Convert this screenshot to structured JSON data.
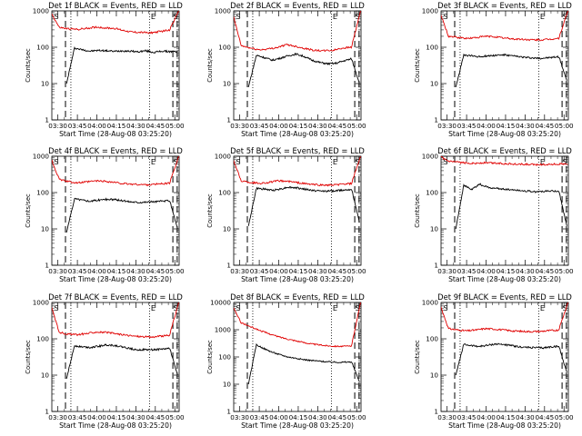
{
  "colors": {
    "events": "#000000",
    "lld": "#e00000",
    "axes": "#000000",
    "background": "#ffffff"
  },
  "chart_data": [
    {
      "type": "line",
      "title": "Det 1f BLACK = Events, RED = LLD",
      "xlabel": "Start Time (28-Aug-08 03:25:20)",
      "ylabel": "Counts/sec",
      "scale": "log",
      "ylim": [
        1,
        1000
      ],
      "yticks": [
        "1",
        "10",
        "100",
        "1000"
      ],
      "xticks": [
        "03:30",
        "03:45",
        "04:00",
        "04:15",
        "04:30",
        "04:45",
        "05:00"
      ],
      "xlim": [
        "03:25:20",
        "05:03:20"
      ],
      "markers": [
        "S",
        "E",
        "S"
      ],
      "dashed_lines": [
        "03:35:50",
        "04:58:30",
        "05:01:50"
      ],
      "dotted_lines": [
        "03:40:00",
        "04:40:30"
      ],
      "series": [
        {
          "name": "Events",
          "color": "#000000",
          "start": "03:36:40",
          "end": "05:02:10",
          "values": [
            10,
            95,
            85,
            78,
            82,
            80,
            77,
            80,
            78,
            75,
            80,
            72,
            78,
            76,
            75
          ]
        },
        {
          "name": "LLD",
          "color": "#e00000",
          "start": "03:24:00",
          "end": "05:03:00",
          "values": [
            1000,
            350,
            320,
            310,
            330,
            360,
            340,
            330,
            290,
            260,
            255,
            250,
            270,
            300,
            1000
          ]
        }
      ]
    },
    {
      "type": "line",
      "title": "Det 2f BLACK = Events, RED = LLD",
      "xlabel": "Start Time (28-Aug-08 03:25:20)",
      "ylabel": "Counts/sec",
      "scale": "log",
      "ylim": [
        1,
        1000
      ],
      "yticks": [
        "1",
        "10",
        "100",
        "1000"
      ],
      "xticks": [
        "03:30",
        "03:45",
        "04:00",
        "04:15",
        "04:30",
        "04:45",
        "05:00"
      ],
      "xlim": [
        "03:25:20",
        "05:03:20"
      ],
      "markers": [
        "S",
        "E",
        "S"
      ],
      "dashed_lines": [
        "03:35:50",
        "04:58:30",
        "05:01:50"
      ],
      "dotted_lines": [
        "03:40:00",
        "04:40:30"
      ],
      "series": [
        {
          "name": "Events",
          "color": "#000000",
          "start": "03:36:40",
          "end": "05:02:10",
          "values": [
            8,
            60,
            52,
            44,
            50,
            58,
            65,
            56,
            44,
            38,
            35,
            36,
            42,
            48,
            10
          ]
        },
        {
          "name": "LLD",
          "color": "#e00000",
          "start": "03:24:00",
          "end": "05:03:00",
          "values": [
            1000,
            110,
            95,
            85,
            90,
            100,
            118,
            105,
            92,
            82,
            80,
            82,
            95,
            100,
            1000
          ]
        }
      ]
    },
    {
      "type": "line",
      "title": "Det 3f BLACK = Events, RED = LLD",
      "xlabel": "Start Time (28-Aug-08 03:25:20)",
      "ylabel": "Counts/sec",
      "scale": "log",
      "ylim": [
        1,
        1000
      ],
      "yticks": [
        "1",
        "10",
        "100",
        "1000"
      ],
      "xticks": [
        "03:30",
        "03:45",
        "04:00",
        "04:15",
        "04:30",
        "04:45",
        "05:00"
      ],
      "xlim": [
        "03:25:20",
        "05:03:20"
      ],
      "markers": [
        "S",
        "E",
        "S"
      ],
      "dashed_lines": [
        "03:35:50",
        "04:58:30",
        "05:01:50"
      ],
      "dotted_lines": [
        "03:40:00",
        "04:40:30"
      ],
      "series": [
        {
          "name": "Events",
          "color": "#000000",
          "start": "03:36:40",
          "end": "05:02:10",
          "values": [
            8,
            60,
            58,
            55,
            58,
            60,
            62,
            58,
            55,
            52,
            50,
            50,
            52,
            55,
            12
          ]
        },
        {
          "name": "LLD",
          "color": "#e00000",
          "start": "03:24:00",
          "end": "05:03:00",
          "values": [
            1000,
            200,
            185,
            175,
            185,
            200,
            195,
            180,
            170,
            165,
            160,
            158,
            165,
            175,
            1000
          ]
        }
      ]
    },
    {
      "type": "line",
      "title": "Det 4f BLACK = Events, RED = LLD",
      "xlabel": "Start Time (28-Aug-08 03:25:20)",
      "ylabel": "Counts/sec",
      "scale": "log",
      "ylim": [
        1,
        1000
      ],
      "yticks": [
        "1",
        "10",
        "100",
        "1000"
      ],
      "xticks": [
        "03:30",
        "03:45",
        "04:00",
        "04:15",
        "04:30",
        "04:45",
        "05:00"
      ],
      "xlim": [
        "03:25:20",
        "05:03:20"
      ],
      "markers": [
        "S",
        "E",
        "S"
      ],
      "dashed_lines": [
        "03:35:50",
        "04:58:30",
        "05:01:50"
      ],
      "dotted_lines": [
        "03:40:00",
        "04:40:30"
      ],
      "series": [
        {
          "name": "Events",
          "color": "#000000",
          "start": "03:36:40",
          "end": "05:02:10",
          "values": [
            8,
            68,
            62,
            58,
            62,
            65,
            64,
            60,
            56,
            54,
            55,
            56,
            58,
            60,
            10
          ]
        },
        {
          "name": "LLD",
          "color": "#e00000",
          "start": "03:24:00",
          "end": "05:03:00",
          "values": [
            1000,
            230,
            200,
            185,
            195,
            210,
            205,
            190,
            175,
            170,
            165,
            165,
            175,
            180,
            1000
          ]
        }
      ]
    },
    {
      "type": "line",
      "title": "Det 5f BLACK = Events, RED = LLD",
      "xlabel": "Start Time (28-Aug-08 03:25:20)",
      "ylabel": "Counts/sec",
      "scale": "log",
      "ylim": [
        1,
        1000
      ],
      "yticks": [
        "1",
        "10",
        "100",
        "1000"
      ],
      "xticks": [
        "03:30",
        "03:45",
        "04:00",
        "04:15",
        "04:30",
        "04:45",
        "05:00"
      ],
      "xlim": [
        "03:25:20",
        "05:03:20"
      ],
      "markers": [
        "S",
        "E",
        "S"
      ],
      "dashed_lines": [
        "03:35:50",
        "04:58:30",
        "05:01:50"
      ],
      "dotted_lines": [
        "03:40:00",
        "04:40:30"
      ],
      "series": [
        {
          "name": "Events",
          "color": "#000000",
          "start": "03:36:40",
          "end": "05:02:10",
          "values": [
            12,
            130,
            125,
            115,
            125,
            140,
            135,
            125,
            115,
            110,
            110,
            112,
            118,
            125,
            15
          ]
        },
        {
          "name": "LLD",
          "color": "#e00000",
          "start": "03:24:00",
          "end": "05:03:00",
          "values": [
            1000,
            210,
            190,
            180,
            190,
            210,
            205,
            190,
            175,
            165,
            160,
            160,
            170,
            175,
            1000
          ]
        }
      ]
    },
    {
      "type": "line",
      "title": "Det 6f BLACK = Events, RED = LLD",
      "xlabel": "Start Time (28-Aug-08 03:25:20)",
      "ylabel": "Counts/sec",
      "scale": "log",
      "ylim": [
        1,
        1000
      ],
      "yticks": [
        "1",
        "10",
        "100",
        "1000"
      ],
      "xticks": [
        "03:30",
        "03:45",
        "04:00",
        "04:15",
        "04:30",
        "04:45",
        "05:00"
      ],
      "xlim": [
        "03:25:20",
        "05:03:20"
      ],
      "markers": [
        "S",
        "E",
        "S"
      ],
      "dashed_lines": [
        "03:35:50",
        "04:58:30",
        "05:01:50"
      ],
      "dotted_lines": [
        "03:40:00",
        "04:40:30"
      ],
      "series": [
        {
          "name": "Events",
          "color": "#000000",
          "start": "03:36:40",
          "end": "05:02:10",
          "values": [
            10,
            160,
            120,
            170,
            140,
            130,
            125,
            120,
            115,
            110,
            105,
            108,
            110,
            110,
            12
          ]
        },
        {
          "name": "LLD",
          "color": "#e00000",
          "start": "03:24:00",
          "end": "05:03:00",
          "values": [
            1000,
            720,
            680,
            650,
            640,
            660,
            650,
            630,
            610,
            600,
            590,
            590,
            600,
            610,
            600
          ]
        }
      ]
    },
    {
      "type": "line",
      "title": "Det 7f BLACK = Events, RED = LLD",
      "xlabel": "Start Time (28-Aug-08 03:25:20)",
      "ylabel": "Counts/sec",
      "scale": "log",
      "ylim": [
        1,
        1000
      ],
      "yticks": [
        "1",
        "10",
        "100",
        "1000"
      ],
      "xticks": [
        "03:30",
        "03:45",
        "04:00",
        "04:15",
        "04:30",
        "04:45",
        "05:00"
      ],
      "xlim": [
        "03:25:20",
        "05:03:20"
      ],
      "markers": [
        "S",
        "E",
        "S"
      ],
      "dashed_lines": [
        "03:35:50",
        "04:58:30",
        "05:01:50"
      ],
      "dotted_lines": [
        "03:40:00",
        "04:40:30"
      ],
      "series": [
        {
          "name": "Events",
          "color": "#000000",
          "start": "03:36:40",
          "end": "05:02:10",
          "values": [
            8,
            65,
            60,
            58,
            62,
            68,
            66,
            60,
            54,
            50,
            50,
            50,
            52,
            55,
            10
          ]
        },
        {
          "name": "LLD",
          "color": "#e00000",
          "start": "03:24:00",
          "end": "05:03:00",
          "values": [
            1000,
            150,
            135,
            130,
            140,
            155,
            150,
            140,
            128,
            120,
            115,
            112,
            118,
            125,
            1000
          ]
        }
      ]
    },
    {
      "type": "line",
      "title": "Det 8f BLACK = Events, RED = LLD",
      "xlabel": "Start Time (28-Aug-08 03:25:20)",
      "ylabel": "Counts/sec",
      "scale": "log",
      "ylim": [
        1,
        10000
      ],
      "yticks": [
        "1",
        "10",
        "100",
        "1000",
        "10000"
      ],
      "xticks": [
        "03:30",
        "03:45",
        "04:00",
        "04:15",
        "04:30",
        "04:45",
        "05:00"
      ],
      "xlim": [
        "03:25:20",
        "05:03:20"
      ],
      "markers": [
        "S",
        "E",
        "S"
      ],
      "dashed_lines": [
        "03:35:50",
        "04:58:30",
        "05:01:50"
      ],
      "dotted_lines": [
        "03:40:00",
        "04:40:30"
      ],
      "series": [
        {
          "name": "Events",
          "color": "#000000",
          "start": "03:36:40",
          "end": "05:02:10",
          "values": [
            10,
            280,
            200,
            150,
            120,
            100,
            90,
            80,
            74,
            70,
            66,
            64,
            64,
            66,
            12
          ]
        },
        {
          "name": "LLD",
          "color": "#e00000",
          "start": "03:24:00",
          "end": "05:03:00",
          "values": [
            8000,
            1800,
            1300,
            950,
            720,
            560,
            460,
            390,
            330,
            290,
            265,
            250,
            245,
            250,
            10000
          ]
        }
      ]
    },
    {
      "type": "line",
      "title": "Det 9f BLACK = Events, RED = LLD",
      "xlabel": "Start Time (28-Aug-08 03:25:20)",
      "ylabel": "Counts/sec",
      "scale": "log",
      "ylim": [
        1,
        1000
      ],
      "yticks": [
        "1",
        "10",
        "100",
        "1000"
      ],
      "xticks": [
        "03:30",
        "03:45",
        "04:00",
        "04:15",
        "04:30",
        "04:45",
        "05:00"
      ],
      "xlim": [
        "03:25:20",
        "05:03:20"
      ],
      "markers": [
        "S",
        "E",
        "S"
      ],
      "dashed_lines": [
        "03:35:50",
        "04:58:30",
        "05:01:50"
      ],
      "dotted_lines": [
        "03:40:00",
        "04:40:30"
      ],
      "series": [
        {
          "name": "Events",
          "color": "#000000",
          "start": "03:36:40",
          "end": "05:02:10",
          "values": [
            10,
            70,
            65,
            62,
            66,
            72,
            70,
            65,
            60,
            58,
            57,
            56,
            60,
            62,
            12
          ]
        },
        {
          "name": "LLD",
          "color": "#e00000",
          "start": "03:24:00",
          "end": "05:03:00",
          "values": [
            1000,
            190,
            175,
            165,
            175,
            190,
            185,
            175,
            165,
            160,
            158,
            160,
            168,
            175,
            1000
          ]
        }
      ]
    }
  ]
}
